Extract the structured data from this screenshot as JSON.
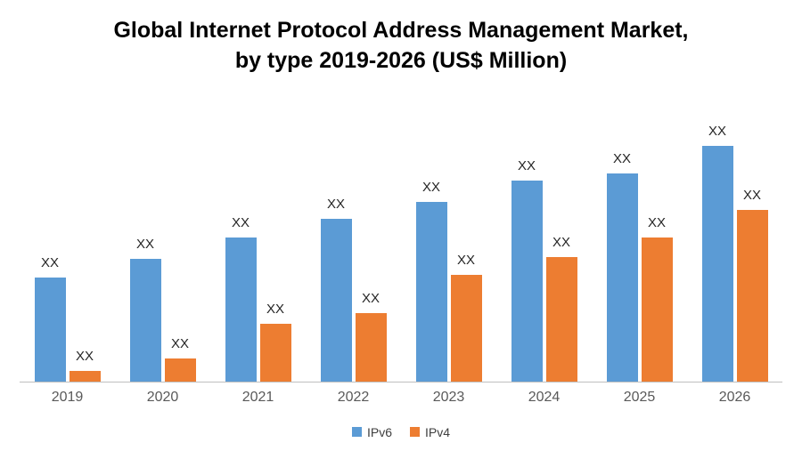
{
  "title": {
    "line1": "Global Internet Protocol Address Management Market,",
    "line2": "by type 2019-2026 (US$ Million)"
  },
  "chart_data": {
    "type": "bar",
    "title": "Global Internet Protocol Address Management Market, by type 2019-2026 (US$ Million)",
    "xlabel": "",
    "ylabel": "",
    "grid": false,
    "y_axis_visible": false,
    "legend_position": "bottom",
    "categories": [
      "2019",
      "2020",
      "2021",
      "2022",
      "2023",
      "2024",
      "2025",
      "2026"
    ],
    "series": [
      {
        "name": "IPv6",
        "color": "#5B9BD5",
        "data_labels": [
          "XX",
          "XX",
          "XX",
          "XX",
          "XX",
          "XX",
          "XX",
          "XX"
        ],
        "relative_heights": [
          44,
          52,
          61,
          69,
          76,
          85,
          88,
          100
        ]
      },
      {
        "name": "IPv4",
        "color": "#ED7D31",
        "data_labels": [
          "XX",
          "XX",
          "XX",
          "XX",
          "XX",
          "XX",
          "XX",
          "XX"
        ],
        "relative_heights": [
          4.5,
          9.5,
          24.5,
          29,
          45,
          52.5,
          61,
          72.5
        ]
      }
    ],
    "note": "Values are masked as XX in the source image; relative_heights are visual estimates (0-100 scale)."
  },
  "legend": {
    "items": [
      {
        "label": "IPv6",
        "color": "#5B9BD5"
      },
      {
        "label": "IPv4",
        "color": "#ED7D31"
      }
    ]
  }
}
